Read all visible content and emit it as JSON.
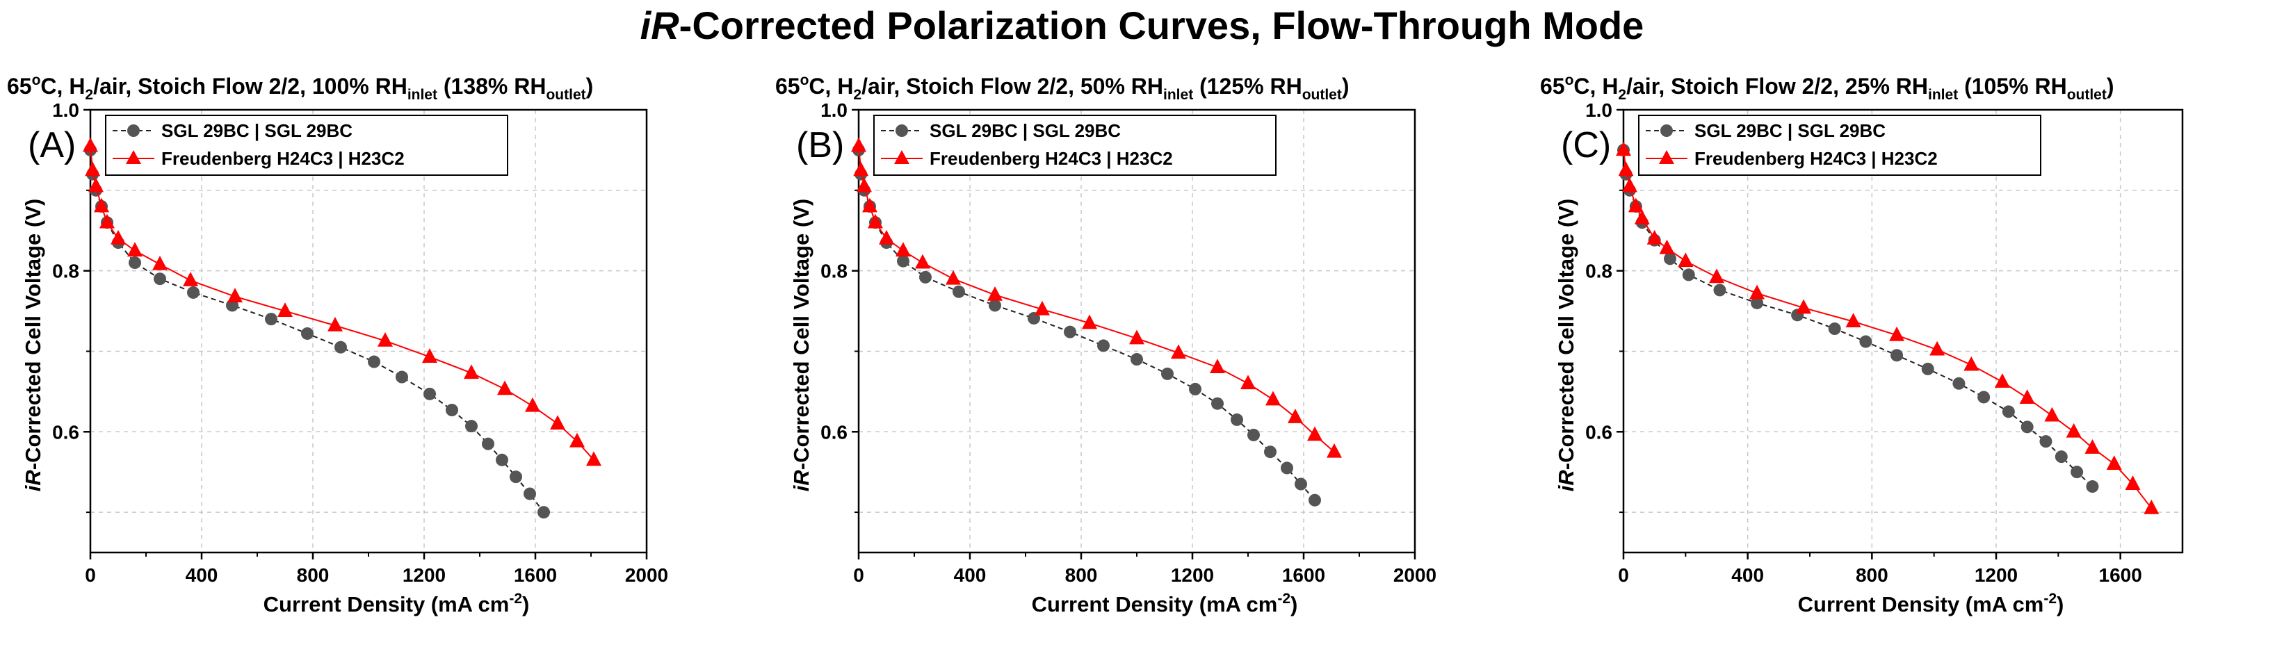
{
  "title": {
    "italic": "iR",
    "rest": "-Corrected Polarization Curves, Flow-Through Mode"
  },
  "colors": {
    "sgl": "#555555",
    "freudenberg": "#ff0000",
    "grid": "#c8c8c8"
  },
  "chart_data": [
    {
      "type": "line",
      "panel_letter": "(A)",
      "subtitle": {
        "pre": "65",
        "sup1": "o",
        "mid1": "C, H",
        "sub1": "2",
        "mid2": "/air, Stoich Flow 2/2, 100% RH",
        "sub2": "inlet",
        "mid3": " (138% RH",
        "sub3": "outlet",
        "post": ")"
      },
      "xlabel": {
        "text": "Current Density (mA cm",
        "sup": "-2",
        "close": ")"
      },
      "ylabel": {
        "italic": "iR",
        "rest": "-Corrected Cell Voltage (V)"
      },
      "xlim": [
        0,
        2000
      ],
      "ylim": [
        0.45,
        1.0
      ],
      "xticks": [
        0,
        400,
        800,
        1200,
        1600,
        2000
      ],
      "yticks": [
        0.6,
        0.8,
        1.0
      ],
      "ytick_labels": [
        "0.6",
        "0.8",
        "1.0"
      ],
      "grid": true,
      "legend_position": "top-left",
      "series": [
        {
          "name": "SGL 29BC | SGL 29BC",
          "marker": "circle",
          "color": "#555555",
          "x": [
            0,
            8,
            20,
            40,
            60,
            100,
            160,
            250,
            370,
            510,
            650,
            780,
            900,
            1020,
            1120,
            1220,
            1300,
            1370,
            1430,
            1480,
            1530,
            1580,
            1630
          ],
          "y": [
            0.95,
            0.92,
            0.9,
            0.88,
            0.86,
            0.835,
            0.81,
            0.79,
            0.773,
            0.757,
            0.74,
            0.722,
            0.705,
            0.687,
            0.668,
            0.647,
            0.627,
            0.607,
            0.585,
            0.565,
            0.544,
            0.523,
            0.5
          ]
        },
        {
          "name": "Freudenberg H24C3 | H23C2",
          "marker": "triangle",
          "color": "#ff0000",
          "x": [
            0,
            8,
            20,
            40,
            60,
            100,
            160,
            250,
            360,
            520,
            700,
            880,
            1060,
            1220,
            1370,
            1490,
            1590,
            1680,
            1750,
            1810
          ],
          "y": [
            0.955,
            0.925,
            0.905,
            0.88,
            0.86,
            0.84,
            0.825,
            0.808,
            0.788,
            0.768,
            0.75,
            0.732,
            0.713,
            0.693,
            0.673,
            0.653,
            0.632,
            0.61,
            0.588,
            0.565
          ]
        }
      ]
    },
    {
      "type": "line",
      "panel_letter": "(B)",
      "subtitle": {
        "pre": "65",
        "sup1": "o",
        "mid1": "C, H",
        "sub1": "2",
        "mid2": "/air, Stoich Flow 2/2, 50% RH",
        "sub2": "inlet",
        "mid3": " (125% RH",
        "sub3": "outlet",
        "post": ")"
      },
      "xlabel": {
        "text": "Current Density (mA cm",
        "sup": "-2",
        "close": ")"
      },
      "ylabel": {
        "italic": "iR",
        "rest": "-Corrected Cell Voltage (V)"
      },
      "xlim": [
        0,
        2000
      ],
      "ylim": [
        0.45,
        1.0
      ],
      "xticks": [
        0,
        400,
        800,
        1200,
        1600,
        2000
      ],
      "yticks": [
        0.6,
        0.8,
        1.0
      ],
      "ytick_labels": [
        "0.6",
        "0.8",
        "1.0"
      ],
      "grid": true,
      "legend_position": "top-left",
      "series": [
        {
          "name": "SGL 29BC | SGL 29BC",
          "marker": "circle",
          "color": "#555555",
          "x": [
            0,
            8,
            20,
            40,
            60,
            100,
            160,
            240,
            360,
            490,
            630,
            760,
            880,
            1000,
            1110,
            1210,
            1290,
            1360,
            1420,
            1480,
            1540,
            1590,
            1640
          ],
          "y": [
            0.95,
            0.92,
            0.9,
            0.88,
            0.86,
            0.835,
            0.812,
            0.792,
            0.774,
            0.757,
            0.741,
            0.724,
            0.707,
            0.69,
            0.672,
            0.653,
            0.635,
            0.615,
            0.596,
            0.575,
            0.555,
            0.535,
            0.515
          ]
        },
        {
          "name": "Freudenberg H24C3 | H23C2",
          "marker": "triangle",
          "color": "#ff0000",
          "x": [
            0,
            8,
            20,
            40,
            60,
            100,
            160,
            230,
            340,
            490,
            660,
            830,
            1000,
            1150,
            1290,
            1400,
            1490,
            1570,
            1640,
            1710
          ],
          "y": [
            0.955,
            0.925,
            0.905,
            0.88,
            0.86,
            0.84,
            0.825,
            0.81,
            0.79,
            0.77,
            0.752,
            0.735,
            0.716,
            0.698,
            0.68,
            0.66,
            0.64,
            0.618,
            0.596,
            0.575
          ]
        }
      ]
    },
    {
      "type": "line",
      "panel_letter": "(C)",
      "subtitle": {
        "pre": "65",
        "sup1": "o",
        "mid1": "C, H",
        "sub1": "2",
        "mid2": "/air, Stoich Flow 2/2, 25% RH",
        "sub2": "inlet",
        "mid3": " (105% RH",
        "sub3": "outlet",
        "post": ")"
      },
      "xlabel": {
        "text": "Current Density (mA cm",
        "sup": "-2",
        "close": ")"
      },
      "ylabel": {
        "italic": "iR",
        "rest": "-Corrected Cell Voltage (V)"
      },
      "xlim": [
        0,
        1800
      ],
      "ylim": [
        0.45,
        1.0
      ],
      "xticks": [
        0,
        400,
        800,
        1200,
        1600
      ],
      "yticks": [
        0.6,
        0.8,
        1.0
      ],
      "ytick_labels": [
        "0.6",
        "0.8",
        "1.0"
      ],
      "grid": true,
      "legend_position": "top-left",
      "series": [
        {
          "name": "SGL 29BC | SGL 29BC",
          "marker": "circle",
          "color": "#555555",
          "x": [
            0,
            8,
            20,
            40,
            60,
            100,
            150,
            210,
            310,
            430,
            560,
            680,
            780,
            880,
            980,
            1080,
            1160,
            1240,
            1300,
            1360,
            1410,
            1460,
            1510
          ],
          "y": [
            0.95,
            0.92,
            0.9,
            0.88,
            0.86,
            0.838,
            0.815,
            0.795,
            0.776,
            0.76,
            0.745,
            0.728,
            0.712,
            0.695,
            0.678,
            0.66,
            0.643,
            0.625,
            0.606,
            0.588,
            0.569,
            0.55,
            0.532
          ]
        },
        {
          "name": "Freudenberg H24C3 | H23C2",
          "marker": "triangle",
          "color": "#ff0000",
          "x": [
            0,
            8,
            20,
            40,
            60,
            100,
            140,
            200,
            300,
            430,
            580,
            740,
            880,
            1010,
            1120,
            1220,
            1300,
            1380,
            1450,
            1510,
            1580,
            1640,
            1700
          ],
          "y": [
            0.95,
            0.925,
            0.905,
            0.88,
            0.865,
            0.84,
            0.828,
            0.812,
            0.792,
            0.772,
            0.754,
            0.737,
            0.72,
            0.702,
            0.683,
            0.662,
            0.642,
            0.62,
            0.6,
            0.58,
            0.56,
            0.535,
            0.505
          ]
        }
      ]
    }
  ]
}
